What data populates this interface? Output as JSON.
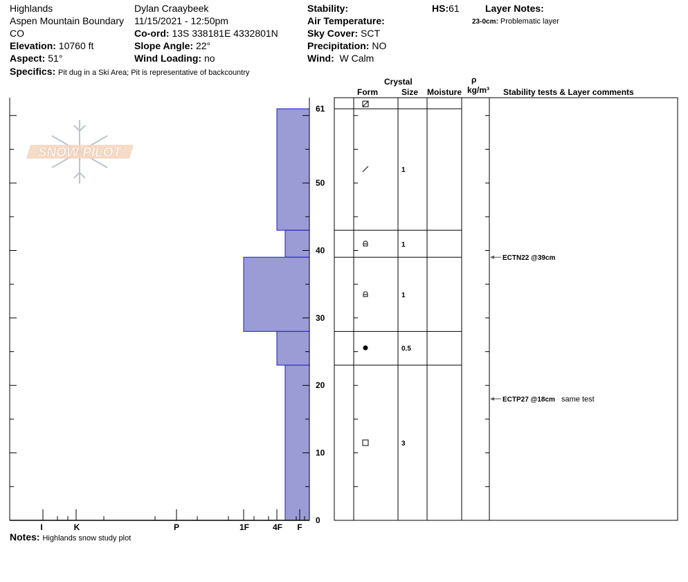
{
  "header": {
    "location": "Highlands",
    "area": "Aspen Mountain Boundary",
    "state": "CO",
    "elevation_label": "Elevation:",
    "elevation": "10760 ft",
    "aspect_label": "Aspect:",
    "aspect": "51°",
    "observer": "Dylan Craaybeek",
    "datetime": "11/15/2021 - 12:50pm",
    "coord_label": "Co-ord:",
    "coord": "13S 338181E 4332801N",
    "slope_label": "Slope Angle:",
    "slope": "22°",
    "wind_loading_label": "Wind Loading:",
    "wind_loading": "no",
    "stability_label": "Stability:",
    "air_temp_label": "Air Temperature:",
    "sky_label": "Sky Cover:",
    "sky": "SCT",
    "precip_label": "Precipitation:",
    "precip": "NO",
    "wind_label": "Wind:",
    "wind": "W Calm",
    "hs_label": "HS:",
    "hs": "61",
    "layer_notes_label": "Layer Notes:",
    "layer_note_range": "23-0cm:",
    "layer_note_text": "Problematic layer",
    "specifics_label": "Specifics:",
    "specifics": "Pit dug in a Ski Area; Pit is representative of backcountry"
  },
  "logo": {
    "text": "SNOW PILOT"
  },
  "columns": {
    "crystal": "Crystal",
    "form": "Form",
    "size": "Size",
    "moisture": "Moisture",
    "rho": "ρ",
    "density_unit": "kg/m³",
    "comments": "Stability tests & Layer comments"
  },
  "hardness_axis": [
    "I",
    "K",
    "P",
    "1F",
    "4F",
    "F"
  ],
  "depth_axis": [
    "61",
    "50",
    "40",
    "30",
    "20",
    "10",
    "0"
  ],
  "chart_data": {
    "type": "snow-profile",
    "hs": 61,
    "depth_unit": "cm",
    "layers": [
      {
        "top": 61,
        "bottom": 43,
        "hardness": "4F",
        "form": "precipitation-particles",
        "size": "1"
      },
      {
        "top": 43,
        "bottom": 39,
        "hardness": "4F-",
        "form": "faceted-rounded",
        "size": "1"
      },
      {
        "top": 39,
        "bottom": 28,
        "hardness": "1F",
        "form": "faceted-rounded",
        "size": "1"
      },
      {
        "top": 28,
        "bottom": 23,
        "hardness": "4F",
        "form": "melt-freeze",
        "size": "0.5"
      },
      {
        "top": 23,
        "bottom": 0,
        "hardness": "4F-",
        "form": "facets",
        "size": "3"
      }
    ],
    "surface_form": "surface-hoar-box",
    "tests": [
      {
        "depth": 39,
        "label": "ECTN22 @39cm",
        "comment": ""
      },
      {
        "depth": 18,
        "label": "ECTP27 @18cm",
        "comment": "same test"
      }
    ]
  },
  "notes": {
    "label": "Notes:",
    "text": "Highlands snow study plot"
  }
}
